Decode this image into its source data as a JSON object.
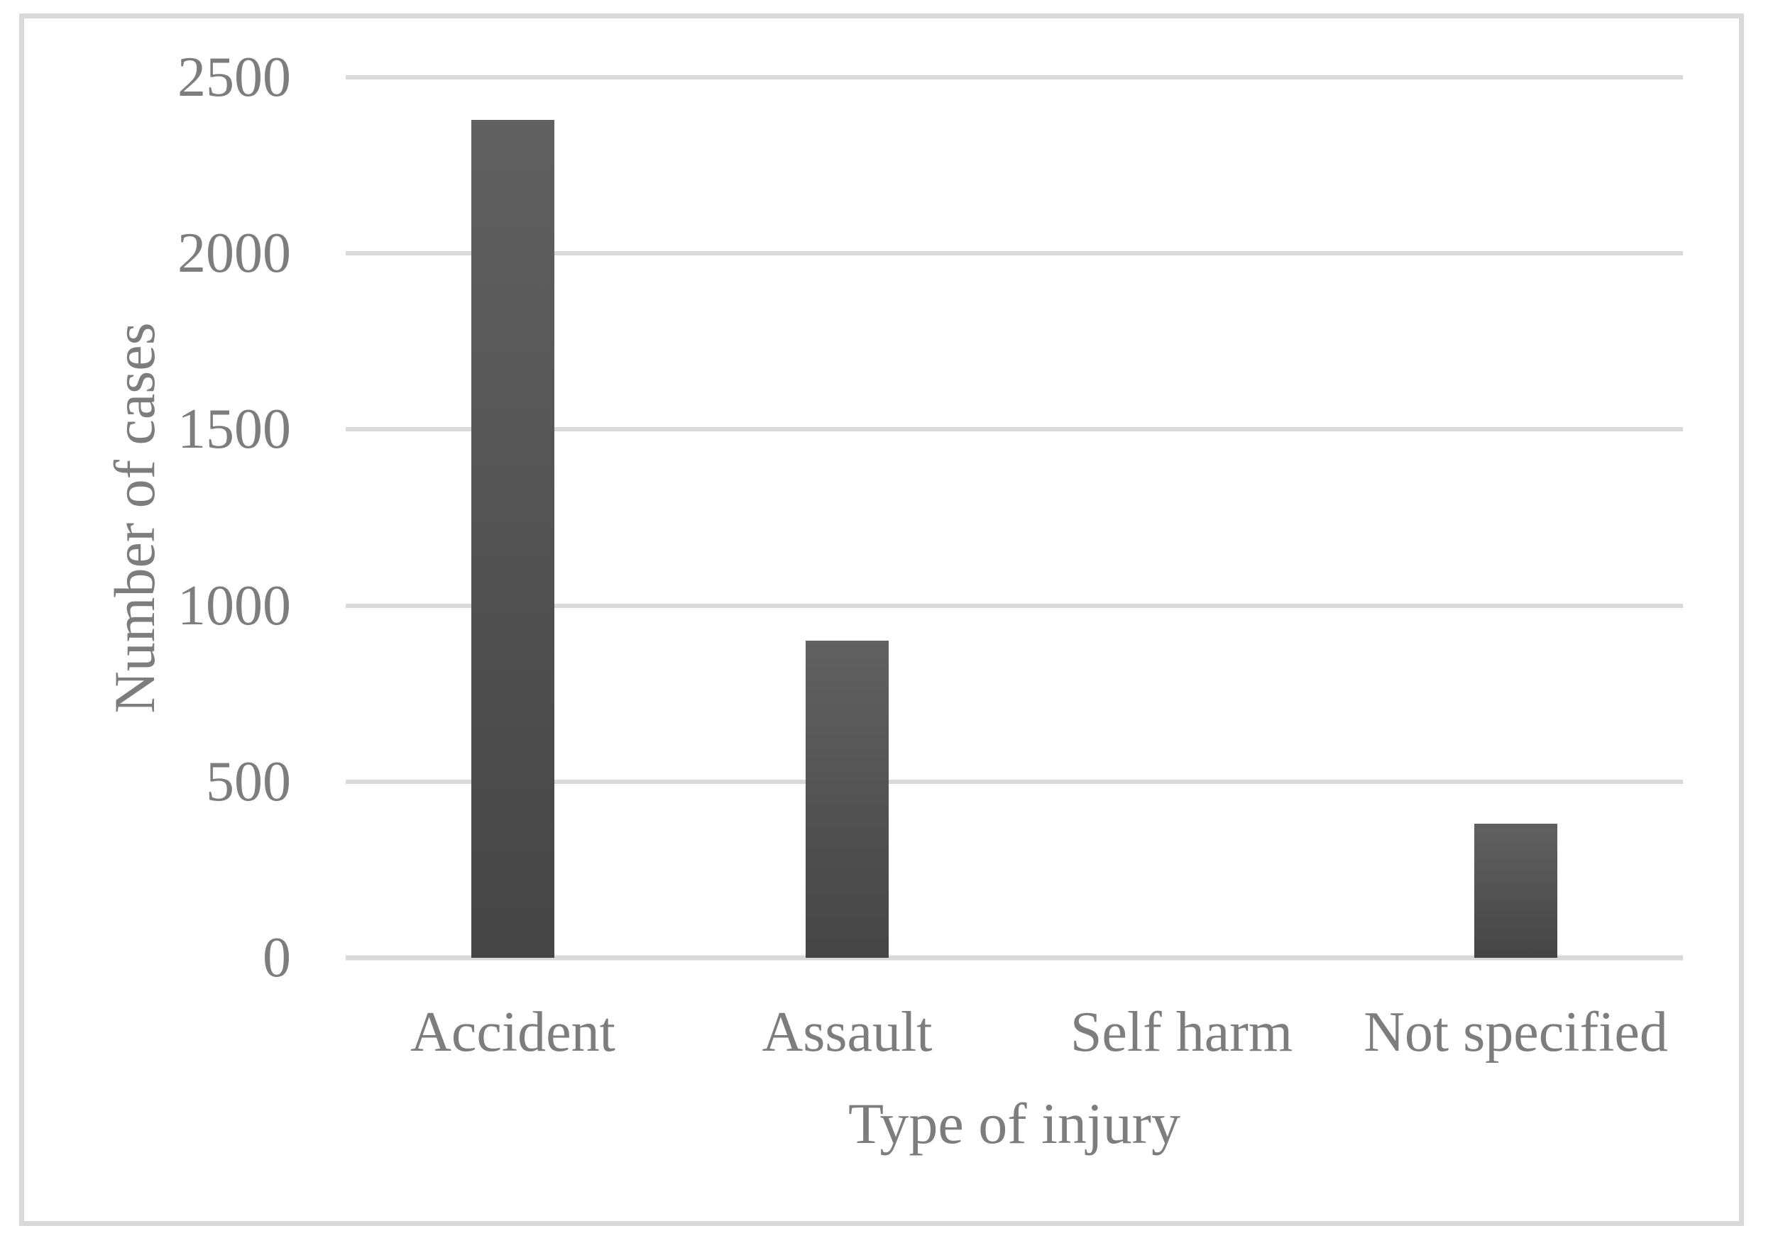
{
  "chart_data": {
    "type": "bar",
    "title": "",
    "categories": [
      "Accident",
      "Assault",
      "Self harm",
      "Not specified"
    ],
    "values": [
      2380,
      900,
      0,
      380
    ],
    "xlabel": "Type of injury",
    "ylabel": "Number of cases",
    "ylim": [
      0,
      2500
    ],
    "yticks": [
      2500,
      2000,
      1500,
      1000,
      500,
      0
    ],
    "grid": "horizontal-gridlines-on",
    "legend": "none",
    "colors": {
      "bar_gradient_top": "#616161",
      "bar_gradient_bottom": "#454545",
      "gridline": "#d9d9d9",
      "axis_line": "#d9d9d9",
      "frame_border": "#d9d9d9",
      "text": "#7d7d7d",
      "background": "#ffffff"
    }
  }
}
